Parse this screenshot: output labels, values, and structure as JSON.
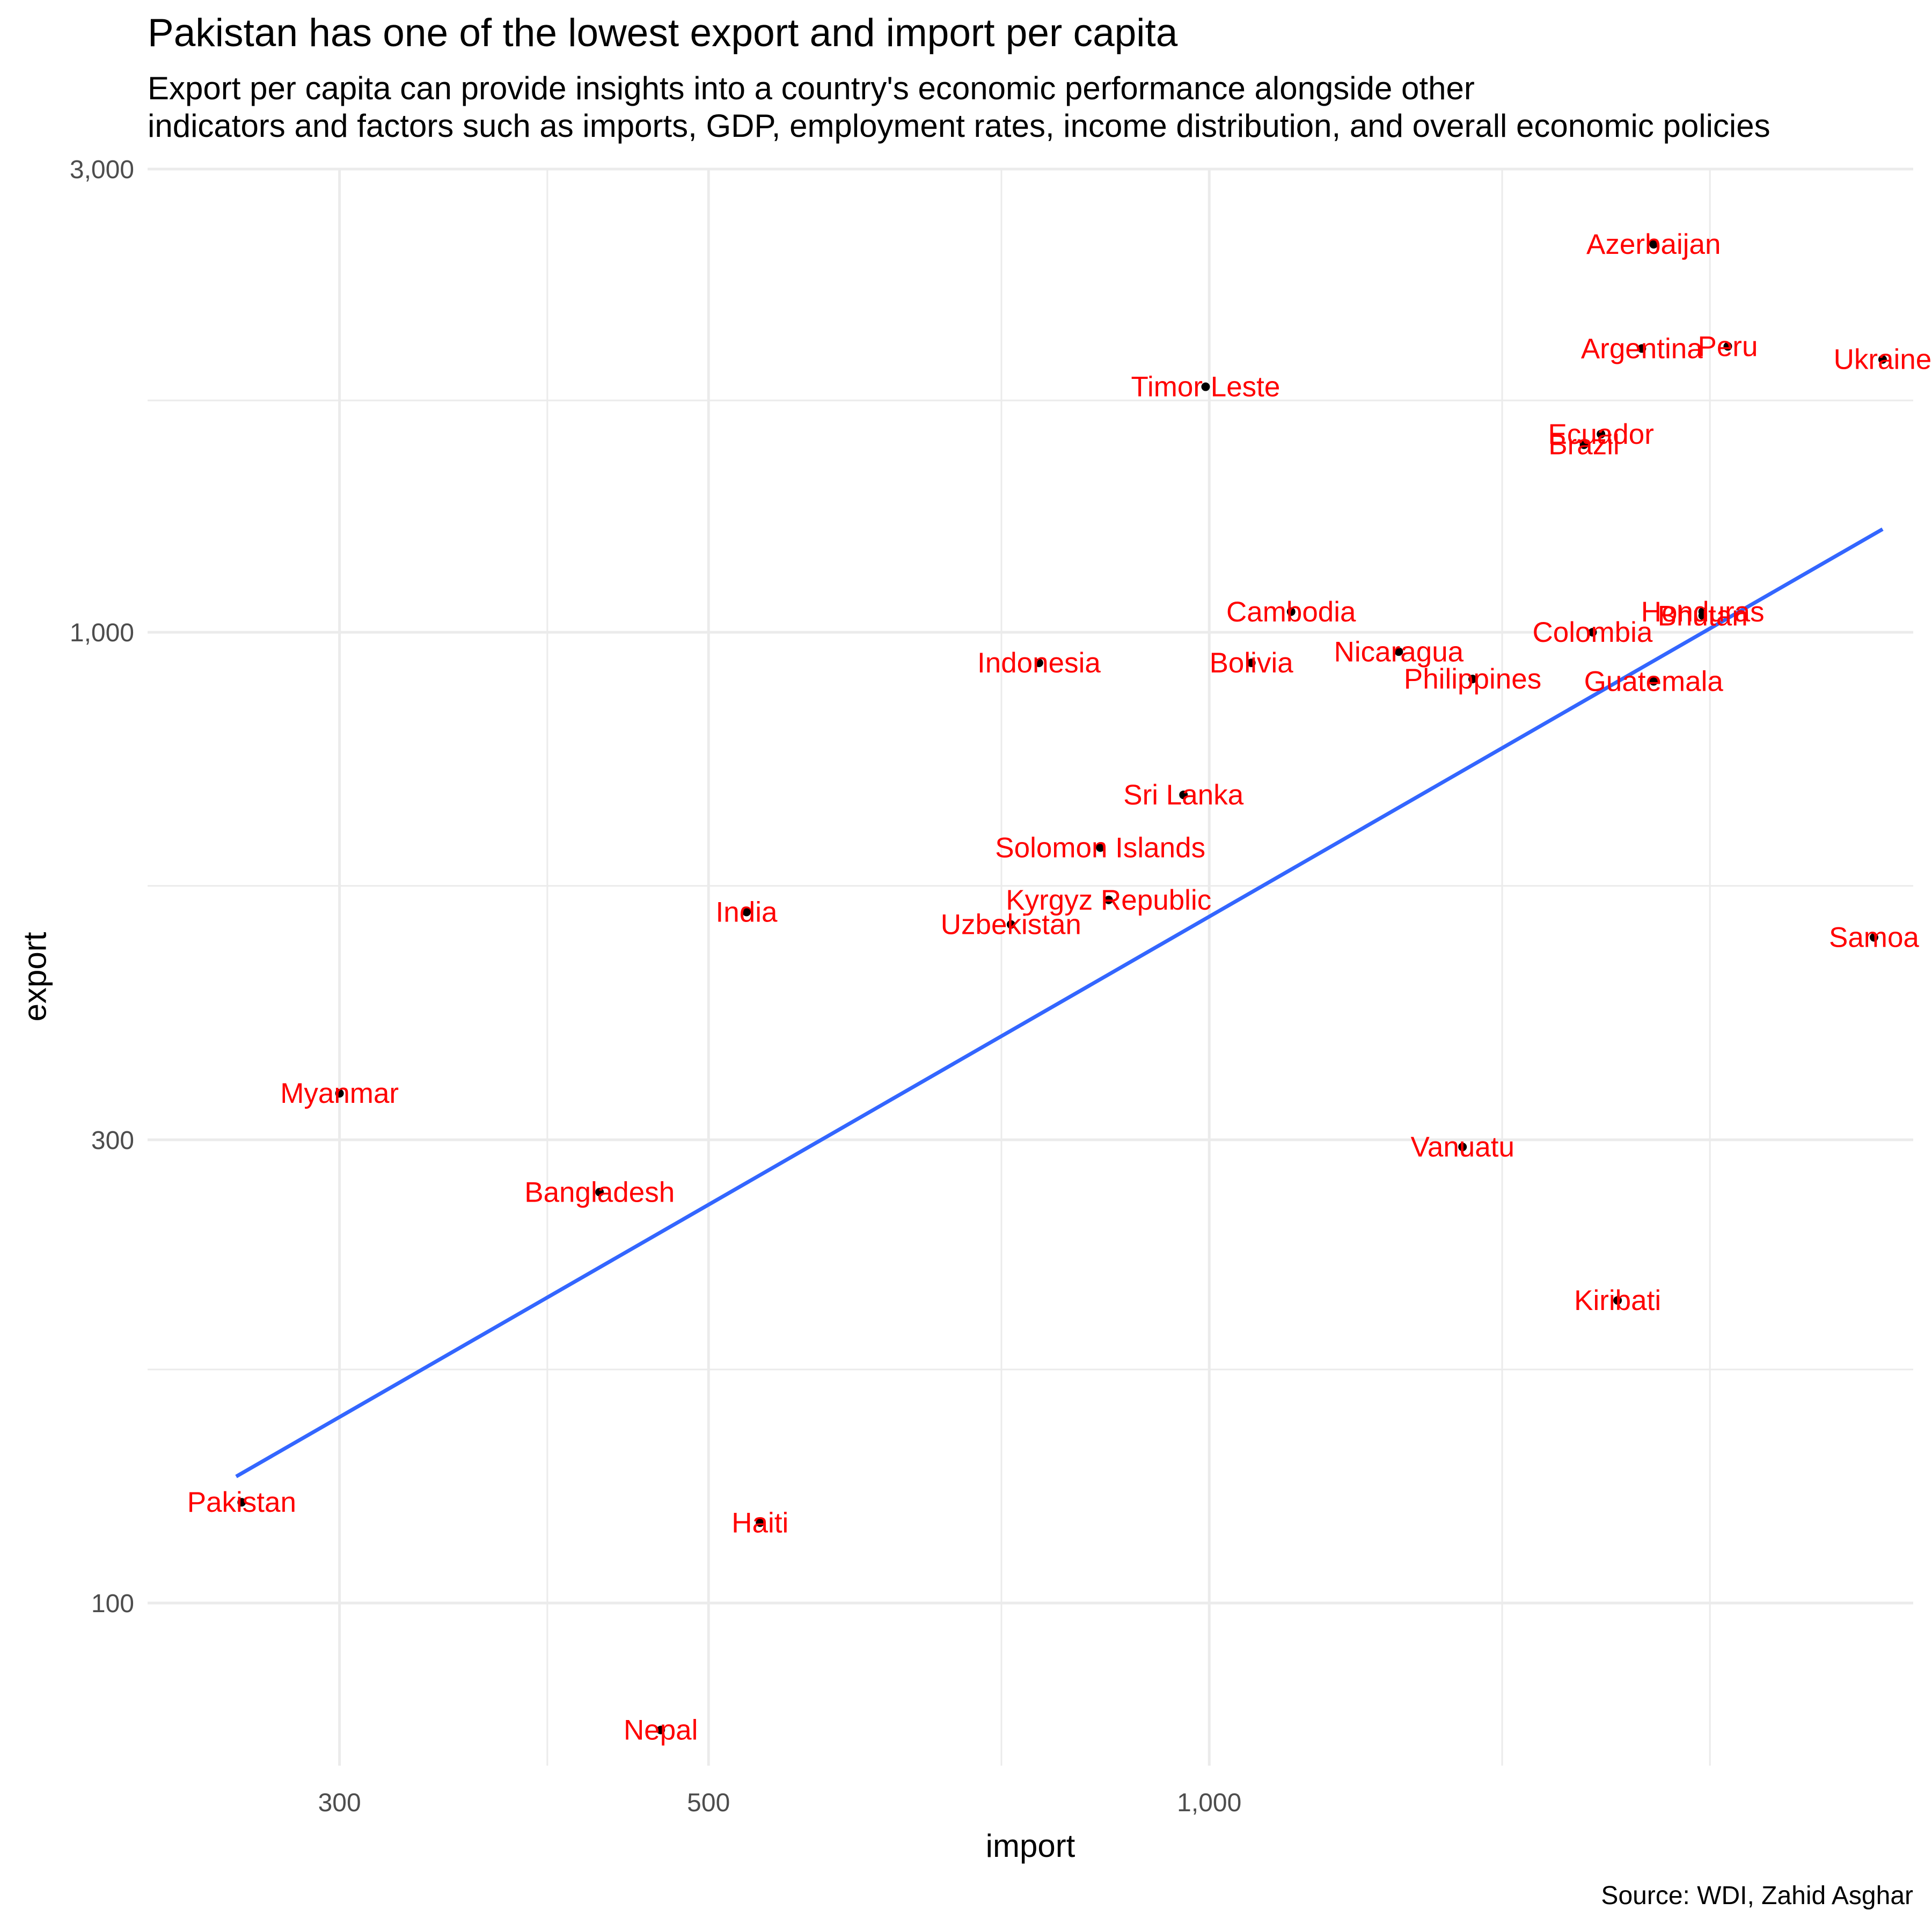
{
  "title": "Pakistan has one of the lowest export and import per capita",
  "subtitle_lines": [
    "Export per capita can provide insights into a country's economic performance alongside other",
    "indicators and factors such as imports, GDP, employment rates, income distribution, and overall economic policies"
  ],
  "caption": "Source: WDI, Zahid Asghar",
  "colors": {
    "label": "#ff0000",
    "point": "#000000",
    "trend": "#3366ff",
    "grid": "#ebebeb",
    "tick_text": "#4d4d4d"
  },
  "chart_data": {
    "type": "scatter",
    "xlabel": "import",
    "ylabel": "export",
    "x_scale": "log10",
    "y_scale": "log10",
    "xlim": [
      230,
      2650
    ],
    "ylim": [
      68,
      3000
    ],
    "x_ticks": [
      300,
      500,
      1000
    ],
    "x_tick_labels": [
      "300",
      "500",
      "1,000"
    ],
    "x_minor_ticks": [
      400,
      750,
      1500,
      2000
    ],
    "y_ticks": [
      100,
      300,
      1000,
      3000
    ],
    "y_tick_labels": [
      "100",
      "300",
      "1,000",
      "3,000"
    ],
    "y_minor_ticks": [
      174,
      548,
      1733
    ],
    "trend_line": {
      "x": [
        260,
        2540
      ],
      "y": [
        135,
        1277
      ]
    },
    "points": [
      {
        "label": "Azerbaijan",
        "import": 1850,
        "export": 2510
      },
      {
        "label": "Argentina",
        "import": 1820,
        "export": 1960
      },
      {
        "label": "Peru",
        "import": 2050,
        "export": 1970
      },
      {
        "label": "Ukraine",
        "import": 2540,
        "export": 1910
      },
      {
        "label": "Timor Leste",
        "import": 995,
        "export": 1790
      },
      {
        "label": "Ecuador",
        "import": 1720,
        "export": 1600
      },
      {
        "label": "Brazil",
        "import": 1680,
        "export": 1560
      },
      {
        "label": "Cambodia",
        "import": 1120,
        "export": 1050
      },
      {
        "label": "Honduras",
        "import": 1980,
        "export": 1050
      },
      {
        "label": "Bhutan",
        "import": 1980,
        "export": 1040
      },
      {
        "label": "Colombia",
        "import": 1700,
        "export": 1000
      },
      {
        "label": "Nicaragua",
        "import": 1300,
        "export": 955
      },
      {
        "label": "Indonesia",
        "import": 790,
        "export": 930
      },
      {
        "label": "Bolivia",
        "import": 1060,
        "export": 930
      },
      {
        "label": "Philippines",
        "import": 1440,
        "export": 895
      },
      {
        "label": "Guatemala",
        "import": 1850,
        "export": 890
      },
      {
        "label": "Sri Lanka",
        "import": 965,
        "export": 680
      },
      {
        "label": "Solomon Islands",
        "import": 860,
        "export": 600
      },
      {
        "label": "Kyrgyz Republic",
        "import": 870,
        "export": 530
      },
      {
        "label": "India",
        "import": 527,
        "export": 515
      },
      {
        "label": "Uzbekistan",
        "import": 760,
        "export": 500
      },
      {
        "label": "Samoa",
        "import": 2510,
        "export": 485
      },
      {
        "label": "Myanmar",
        "import": 300,
        "export": 335
      },
      {
        "label": "Vanuatu",
        "import": 1420,
        "export": 295
      },
      {
        "label": "Bangladesh",
        "import": 430,
        "export": 265
      },
      {
        "label": "Kiribati",
        "import": 1760,
        "export": 205
      },
      {
        "label": "Pakistan",
        "import": 262,
        "export": 127
      },
      {
        "label": "Haiti",
        "import": 537,
        "export": 121
      },
      {
        "label": "Nepal",
        "import": 468,
        "export": 74
      }
    ]
  }
}
